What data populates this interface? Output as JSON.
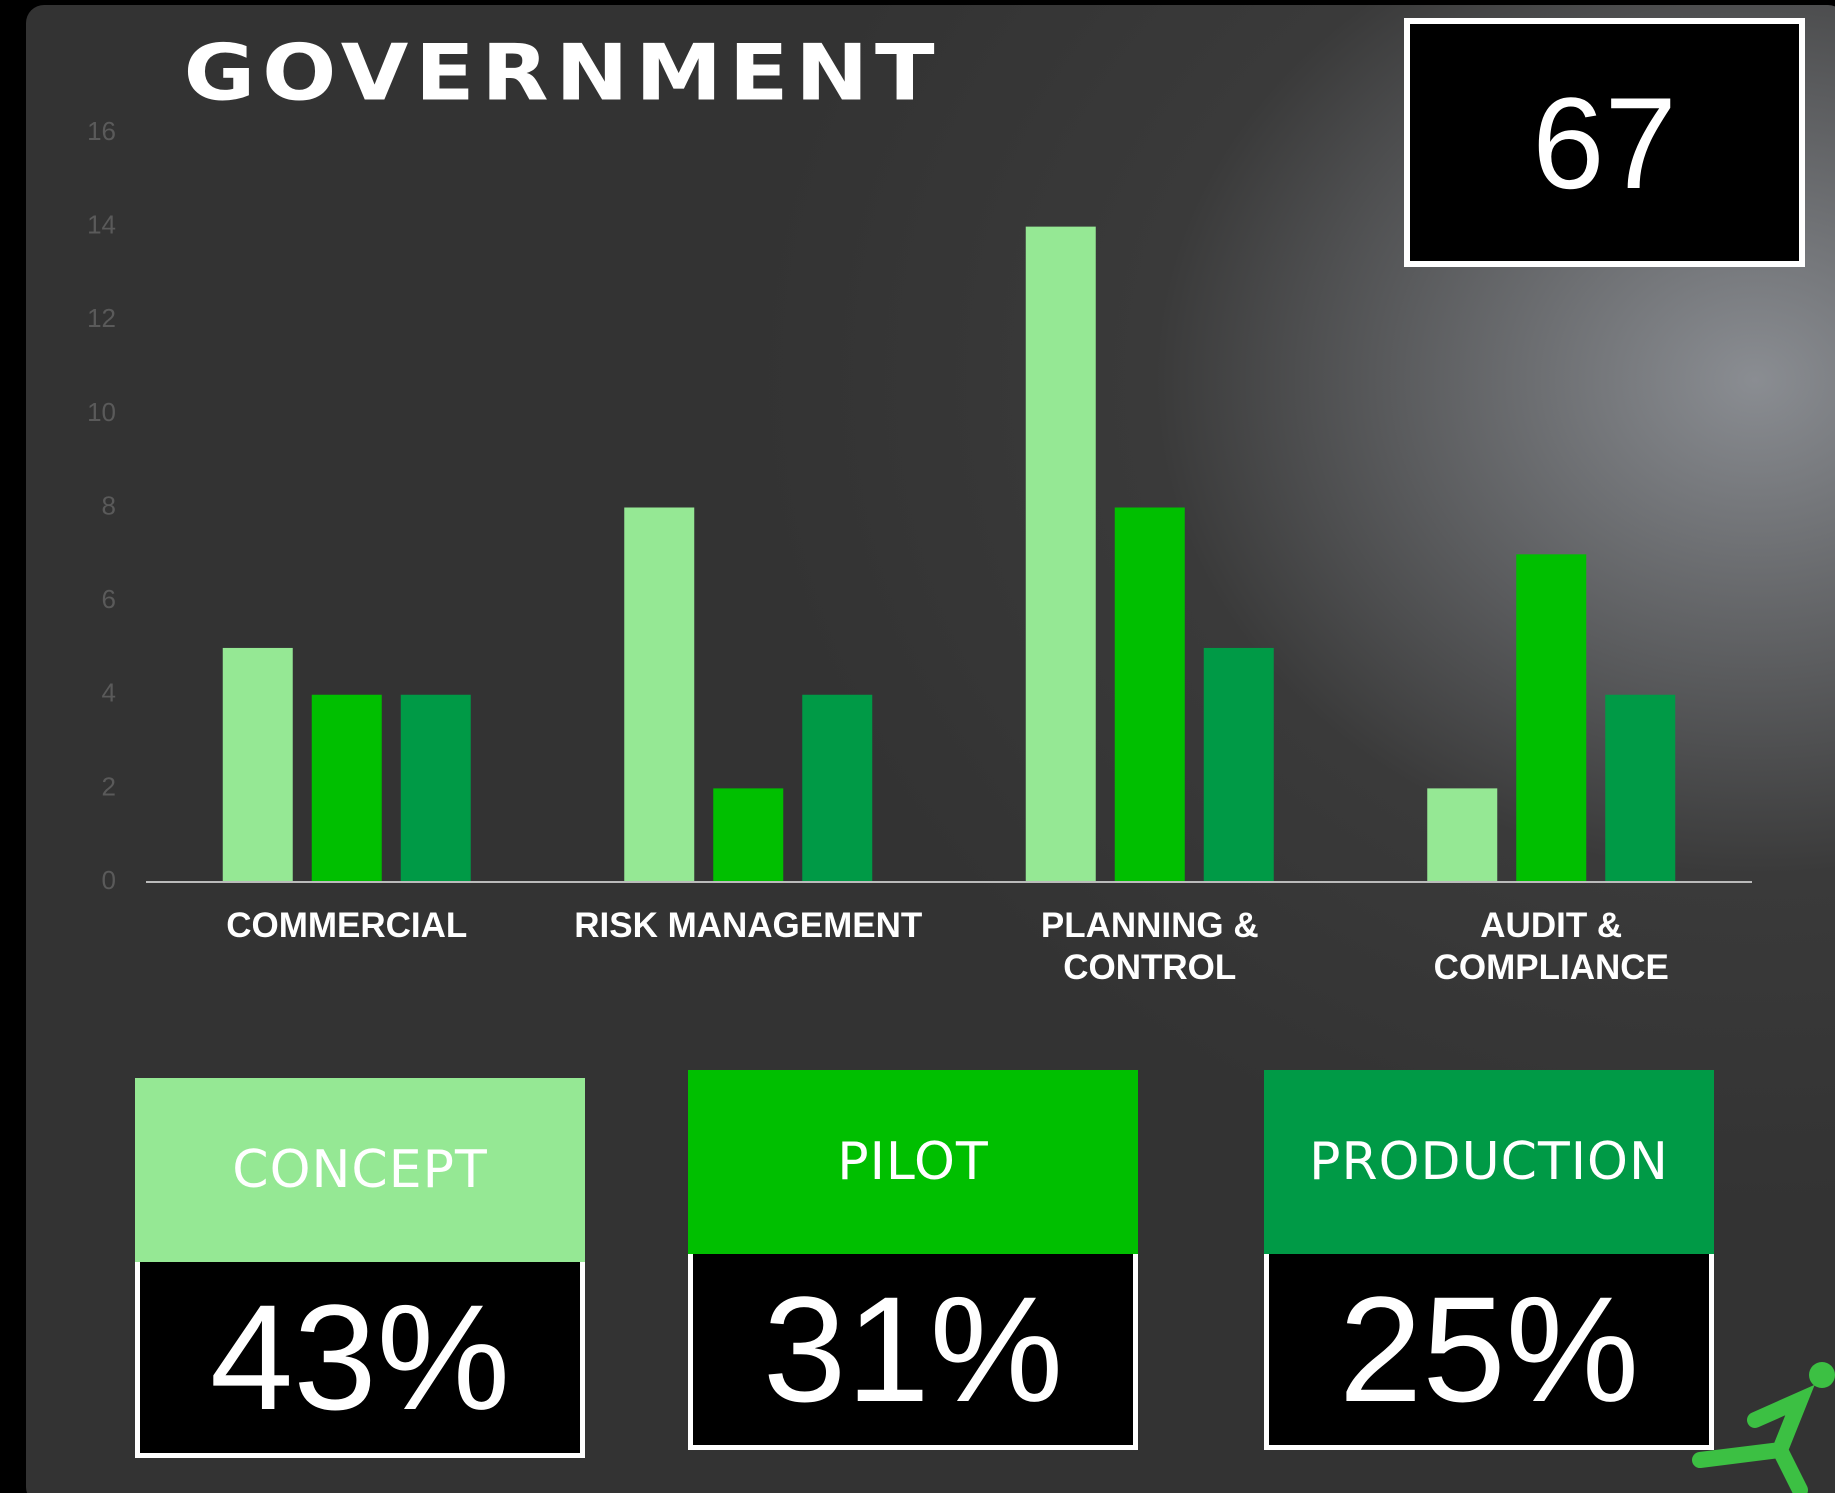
{
  "chart_data": {
    "type": "bar",
    "title": "GOVERNMENT",
    "total": 67,
    "categories": [
      "COMMERCIAL",
      "RISK MANAGEMENT",
      "PLANNING & CONTROL",
      "AUDIT & COMPLIANCE"
    ],
    "series": [
      {
        "name": "CONCEPT",
        "color": "#95e894",
        "values": [
          5,
          8,
          14,
          2
        ]
      },
      {
        "name": "PILOT",
        "color": "#00bf00",
        "values": [
          4,
          2,
          8,
          7
        ]
      },
      {
        "name": "PRODUCTION",
        "color": "#009a46",
        "values": [
          4,
          4,
          5,
          4
        ]
      }
    ],
    "shares": {
      "values": [
        43,
        31,
        25
      ],
      "value_labels": [
        "43%",
        "31%",
        "25%"
      ]
    },
    "ylim": [
      0,
      16
    ],
    "yticks": [
      0,
      2,
      4,
      6,
      8,
      10,
      12,
      14,
      16
    ],
    "grid": false
  }
}
